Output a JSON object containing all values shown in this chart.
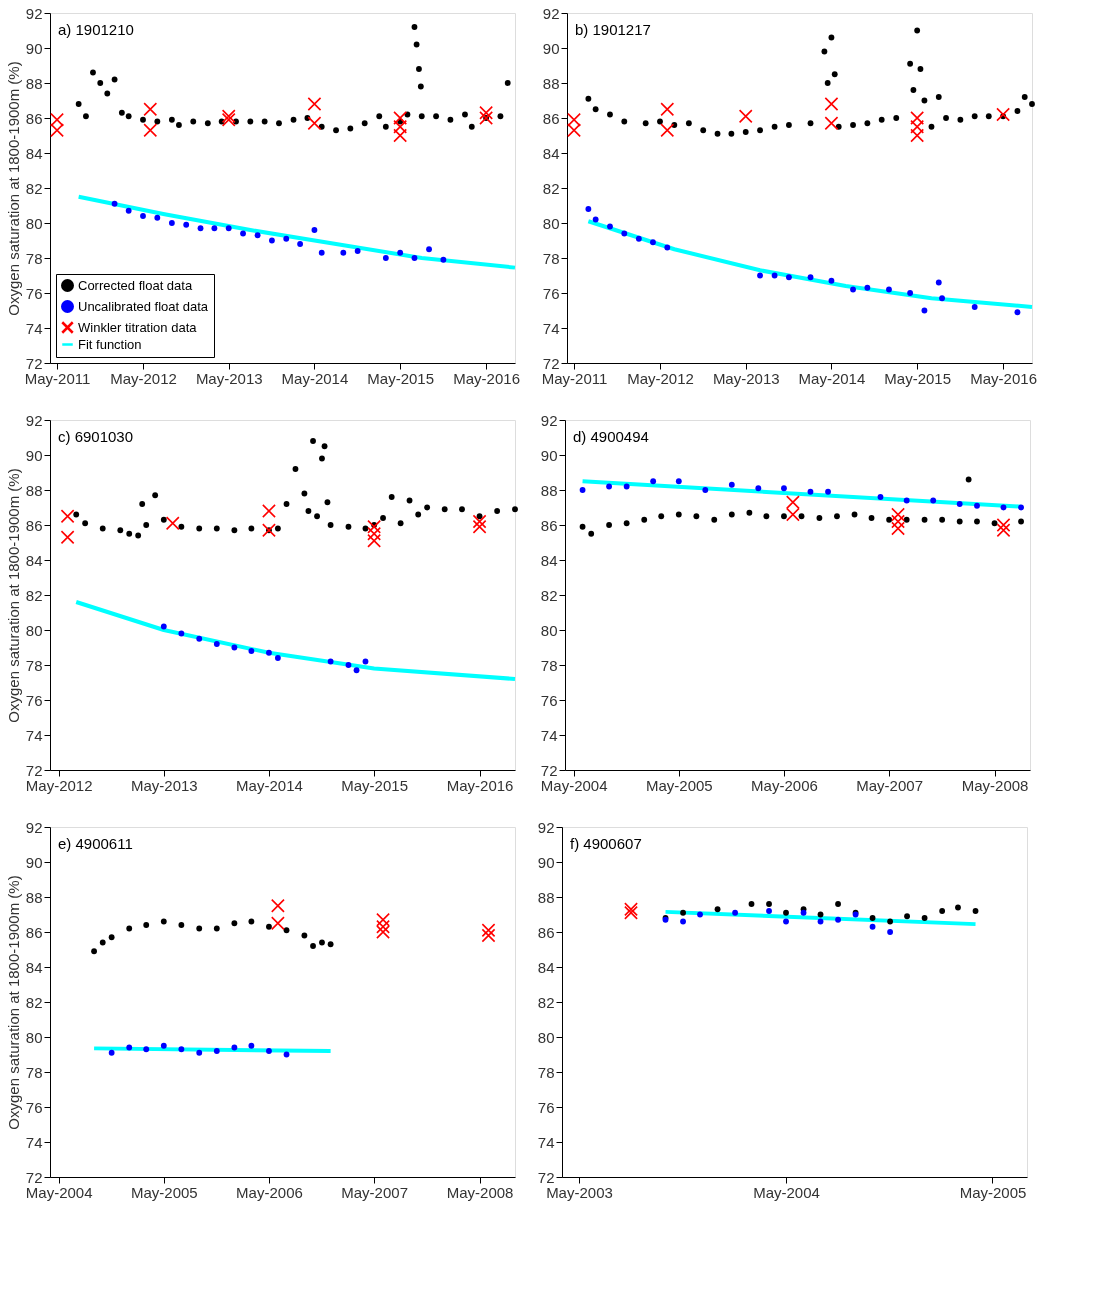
{
  "chart_data": [
    {
      "type": "scatter",
      "title": "a) 1901210",
      "ylabel": "Oxygen saturation at 1800-1900m (%)",
      "xlim": [
        "2011-04",
        "2016-09"
      ],
      "xticks": [
        {
          "value": "2011-05",
          "label": "May-2011"
        },
        {
          "value": "2012-05",
          "label": "May-2012"
        },
        {
          "value": "2013-05",
          "label": "May-2013"
        },
        {
          "value": "2014-05",
          "label": "May-2014"
        },
        {
          "value": "2015-05",
          "label": "May-2015"
        },
        {
          "value": "2016-05",
          "label": "May-2016"
        }
      ],
      "ylim": [
        72,
        92
      ],
      "yticks": [
        72,
        74,
        76,
        78,
        80,
        82,
        84,
        86,
        88,
        90,
        92
      ],
      "legend": "bottom left",
      "series": [
        {
          "name": "Corrected float data",
          "type": "scatter",
          "marker": "circle",
          "color": "#000000",
          "x": [
            "2011-08",
            "2011-09",
            "2011-10",
            "2011-11",
            "2011-12",
            "2012-01",
            "2012-02",
            "2012-03",
            "2012-05",
            "2012-07",
            "2012-09",
            "2012-10",
            "2012-12",
            "2013-02",
            "2013-04",
            "2013-06",
            "2013-08",
            "2013-10",
            "2013-12",
            "2014-02",
            "2014-04",
            "2014-06",
            "2014-08",
            "2014-10",
            "2014-12",
            "2015-02",
            "2015-03",
            "2015-05",
            "2015-06",
            "2015-07-01",
            "2015-07-10",
            "2015-07-20",
            "2015-07-28",
            "2015-08",
            "2015-10",
            "2015-12",
            "2016-02",
            "2016-03",
            "2016-05",
            "2016-07",
            "2016-08"
          ],
          "values": [
            86.8,
            86.1,
            88.6,
            88.0,
            87.4,
            88.2,
            86.3,
            86.1,
            85.9,
            85.8,
            85.9,
            85.6,
            85.8,
            85.7,
            85.8,
            85.8,
            85.8,
            85.8,
            85.7,
            85.9,
            86.0,
            85.5,
            85.3,
            85.4,
            85.7,
            86.1,
            85.5,
            85.8,
            86.2,
            91.2,
            90.2,
            88.8,
            87.8,
            86.1,
            86.1,
            85.9,
            86.2,
            85.5,
            86.0,
            86.1,
            88.0
          ]
        },
        {
          "name": "Uncalibrated float data",
          "type": "scatter",
          "marker": "circle",
          "color": "#0000ff",
          "x": [
            "2012-01",
            "2012-03",
            "2012-05",
            "2012-07",
            "2012-09",
            "2012-11",
            "2013-01",
            "2013-03",
            "2013-05",
            "2013-07",
            "2013-09",
            "2013-11",
            "2014-01",
            "2014-03",
            "2014-05",
            "2014-06",
            "2014-09",
            "2014-11",
            "2015-03",
            "2015-05",
            "2015-07",
            "2015-09",
            "2015-11"
          ],
          "values": [
            81.1,
            80.7,
            80.4,
            80.3,
            80.0,
            79.9,
            79.7,
            79.7,
            79.7,
            79.4,
            79.3,
            79.0,
            79.1,
            78.8,
            79.6,
            78.3,
            78.3,
            78.4,
            78.0,
            78.3,
            78.0,
            78.5,
            77.9
          ]
        },
        {
          "name": "Winkler titration data",
          "type": "scatter",
          "marker": "cross",
          "color": "#ff0000",
          "x": [
            "2011-05",
            "2011-05",
            "2012-06",
            "2012-06",
            "2013-05",
            "2013-05",
            "2014-05",
            "2014-05",
            "2015-05",
            "2015-05",
            "2015-05",
            "2016-05",
            "2016-05"
          ],
          "values": [
            85.9,
            85.3,
            86.5,
            85.3,
            86.1,
            85.9,
            86.8,
            85.7,
            86.0,
            85.5,
            85.0,
            86.3,
            86.0
          ]
        },
        {
          "name": "Fit function",
          "type": "line",
          "color": "#00ffff",
          "x": [
            "2011-08",
            "2012-08",
            "2013-08",
            "2014-08",
            "2015-08",
            "2016-09"
          ],
          "values": [
            81.5,
            80.5,
            79.6,
            78.8,
            78.0,
            77.45
          ]
        }
      ]
    },
    {
      "type": "scatter",
      "title": "b) 1901217",
      "xlim": [
        "2011-04",
        "2016-09"
      ],
      "xticks": [
        {
          "value": "2011-05",
          "label": "May-2011"
        },
        {
          "value": "2012-05",
          "label": "May-2012"
        },
        {
          "value": "2013-05",
          "label": "May-2013"
        },
        {
          "value": "2014-05",
          "label": "May-2014"
        },
        {
          "value": "2015-05",
          "label": "May-2015"
        },
        {
          "value": "2016-05",
          "label": "May-2016"
        }
      ],
      "ylim": [
        72,
        92
      ],
      "yticks": [
        72,
        74,
        76,
        78,
        80,
        82,
        84,
        86,
        88,
        90,
        92
      ],
      "series": [
        {
          "type": "scatter",
          "marker": "circle",
          "color": "#000000",
          "x": [
            "2011-07",
            "2011-08",
            "2011-10",
            "2011-12",
            "2012-03",
            "2012-05",
            "2012-07",
            "2012-09",
            "2012-11",
            "2013-01",
            "2013-03",
            "2013-05",
            "2013-07",
            "2013-09",
            "2013-11",
            "2014-02",
            "2014-04-01",
            "2014-04-15",
            "2014-05-01",
            "2014-05-15",
            "2014-06",
            "2014-08",
            "2014-10",
            "2014-12",
            "2015-02",
            "2015-04-01",
            "2015-04-15",
            "2015-05-01",
            "2015-05-15",
            "2015-06",
            "2015-07",
            "2015-08",
            "2015-09",
            "2015-11",
            "2016-01",
            "2016-03",
            "2016-05",
            "2016-07",
            "2016-08",
            "2016-09"
          ],
          "values": [
            87.1,
            86.5,
            86.2,
            85.8,
            85.7,
            85.8,
            85.6,
            85.7,
            85.3,
            85.1,
            85.1,
            85.2,
            85.3,
            85.5,
            85.6,
            85.7,
            89.8,
            88.0,
            90.6,
            88.5,
            85.5,
            85.6,
            85.7,
            85.9,
            86.0,
            89.1,
            87.6,
            91.0,
            88.8,
            87.0,
            85.5,
            87.2,
            86.0,
            85.9,
            86.1,
            86.1,
            86.1,
            86.4,
            87.2,
            86.8
          ]
        },
        {
          "type": "scatter",
          "marker": "circle",
          "color": "#0000ff",
          "x": [
            "2011-07",
            "2011-08",
            "2011-10",
            "2011-12",
            "2012-02",
            "2012-04",
            "2012-06",
            "2013-07",
            "2013-09",
            "2013-11",
            "2014-02",
            "2014-05",
            "2014-08",
            "2014-10",
            "2015-01",
            "2015-04",
            "2015-06",
            "2015-08-01",
            "2015-08-15",
            "2016-01",
            "2016-07"
          ],
          "values": [
            80.8,
            80.2,
            79.8,
            79.4,
            79.1,
            78.9,
            78.6,
            77.0,
            77.0,
            76.9,
            76.9,
            76.7,
            76.2,
            76.3,
            76.2,
            76.0,
            75.0,
            76.6,
            75.7,
            75.2,
            74.9
          ]
        },
        {
          "type": "scatter",
          "marker": "cross",
          "color": "#ff0000",
          "x": [
            "2011-05",
            "2011-05",
            "2012-06",
            "2012-06",
            "2013-05",
            "2014-05",
            "2014-05",
            "2015-05",
            "2015-05",
            "2015-05",
            "2016-05"
          ],
          "values": [
            85.9,
            85.3,
            86.5,
            85.3,
            86.1,
            86.8,
            85.7,
            86.0,
            85.5,
            85.0,
            86.2
          ]
        },
        {
          "type": "line",
          "color": "#00ffff",
          "x": [
            "2011-07",
            "2012-07",
            "2013-07",
            "2014-07",
            "2015-07",
            "2016-09"
          ],
          "values": [
            80.1,
            78.5,
            77.3,
            76.4,
            75.7,
            75.2
          ]
        }
      ]
    },
    {
      "type": "scatter",
      "title": "c) 6901030",
      "ylabel": "Oxygen saturation at 1800-1900m (%)",
      "xlim": [
        "2012-04",
        "2016-09"
      ],
      "xticks": [
        {
          "value": "2012-05",
          "label": "May-2012"
        },
        {
          "value": "2013-05",
          "label": "May-2013"
        },
        {
          "value": "2014-05",
          "label": "May-2014"
        },
        {
          "value": "2015-05",
          "label": "May-2015"
        },
        {
          "value": "2016-05",
          "label": "May-2016"
        }
      ],
      "ylim": [
        72,
        92
      ],
      "yticks": [
        72,
        74,
        76,
        78,
        80,
        82,
        84,
        86,
        88,
        90,
        92
      ],
      "series": [
        {
          "type": "scatter",
          "marker": "circle",
          "color": "#000000",
          "x": [
            "2012-07",
            "2012-08",
            "2012-10",
            "2012-12",
            "2013-01",
            "2013-02-01",
            "2013-02-15",
            "2013-03",
            "2013-04",
            "2013-05",
            "2013-07",
            "2013-09",
            "2013-11",
            "2014-01",
            "2014-03",
            "2014-05",
            "2014-06",
            "2014-07",
            "2014-08",
            "2014-09-01",
            "2014-09-15",
            "2014-10-01",
            "2014-10-15",
            "2014-11-01",
            "2014-11-10",
            "2014-11-20",
            "2014-12",
            "2015-02",
            "2015-04",
            "2015-05",
            "2015-06",
            "2015-07",
            "2015-08",
            "2015-09",
            "2015-10",
            "2015-11",
            "2016-01",
            "2016-03",
            "2016-05",
            "2016-07",
            "2016-09"
          ],
          "values": [
            86.6,
            86.1,
            85.8,
            85.7,
            85.5,
            85.4,
            87.2,
            86.0,
            87.7,
            86.3,
            85.9,
            85.8,
            85.8,
            85.7,
            85.8,
            85.7,
            85.8,
            87.2,
            89.2,
            87.8,
            86.8,
            90.8,
            86.5,
            89.8,
            90.5,
            87.3,
            86.0,
            85.9,
            85.8,
            86.0,
            86.4,
            87.6,
            86.1,
            87.4,
            86.6,
            87.0,
            86.9,
            86.9,
            86.5,
            86.8,
            86.9
          ]
        },
        {
          "type": "scatter",
          "marker": "circle",
          "color": "#0000ff",
          "x": [
            "2013-05",
            "2013-07",
            "2013-09",
            "2013-11",
            "2014-01",
            "2014-03",
            "2014-05",
            "2014-06",
            "2014-12",
            "2015-02",
            "2015-03",
            "2015-04"
          ],
          "values": [
            80.2,
            79.8,
            79.5,
            79.2,
            79.0,
            78.8,
            78.7,
            78.4,
            78.2,
            78.0,
            77.7,
            78.2
          ]
        },
        {
          "type": "scatter",
          "marker": "cross",
          "color": "#ff0000",
          "x": [
            "2012-06",
            "2012-06",
            "2013-06",
            "2014-05",
            "2014-05",
            "2015-05",
            "2015-05",
            "2015-05",
            "2016-05",
            "2016-05"
          ],
          "values": [
            86.5,
            85.3,
            86.1,
            86.8,
            85.7,
            85.9,
            85.5,
            85.1,
            86.2,
            85.9
          ]
        },
        {
          "type": "line",
          "color": "#00ffff",
          "x": [
            "2012-07",
            "2013-05",
            "2014-05",
            "2015-05",
            "2016-09"
          ],
          "values": [
            81.6,
            80.0,
            78.7,
            77.8,
            77.2
          ]
        }
      ]
    },
    {
      "type": "scatter",
      "title": "d) 4900494",
      "xlim": [
        "2004-04",
        "2008-09"
      ],
      "xticks": [
        {
          "value": "2004-05",
          "label": "May-2004"
        },
        {
          "value": "2005-05",
          "label": "May-2005"
        },
        {
          "value": "2006-05",
          "label": "May-2006"
        },
        {
          "value": "2007-05",
          "label": "May-2007"
        },
        {
          "value": "2008-05",
          "label": "May-2008"
        }
      ],
      "ylim": [
        72,
        92
      ],
      "yticks": [
        72,
        74,
        76,
        78,
        80,
        82,
        84,
        86,
        88,
        90,
        92
      ],
      "series": [
        {
          "type": "scatter",
          "marker": "circle",
          "color": "#000000",
          "x": [
            "2004-06",
            "2004-07",
            "2004-09",
            "2004-11",
            "2005-01",
            "2005-03",
            "2005-05",
            "2005-07",
            "2005-09",
            "2005-11",
            "2006-01",
            "2006-03",
            "2006-05",
            "2006-07",
            "2006-09",
            "2006-11",
            "2007-01",
            "2007-03",
            "2007-05",
            "2007-07",
            "2007-09",
            "2007-11",
            "2008-01",
            "2008-02",
            "2008-03",
            "2008-05",
            "2008-08"
          ],
          "values": [
            85.9,
            85.5,
            86.0,
            86.1,
            86.3,
            86.5,
            86.6,
            86.5,
            86.3,
            86.6,
            86.7,
            86.5,
            86.5,
            86.5,
            86.4,
            86.5,
            86.6,
            86.4,
            86.3,
            86.3,
            86.3,
            86.3,
            86.2,
            88.6,
            86.2,
            86.1,
            86.2
          ]
        },
        {
          "type": "scatter",
          "marker": "circle",
          "color": "#0000ff",
          "x": [
            "2004-06",
            "2004-09",
            "2004-11",
            "2005-02",
            "2005-05",
            "2005-08",
            "2005-11",
            "2006-02",
            "2006-05",
            "2006-08",
            "2006-10",
            "2007-04",
            "2007-07",
            "2007-10",
            "2008-01",
            "2008-03",
            "2008-06",
            "2008-08"
          ],
          "values": [
            88.0,
            88.2,
            88.2,
            88.5,
            88.5,
            88.0,
            88.3,
            88.1,
            88.1,
            87.9,
            87.9,
            87.6,
            87.4,
            87.4,
            87.2,
            87.1,
            87.0,
            87.0
          ]
        },
        {
          "type": "scatter",
          "marker": "cross",
          "color": "#ff0000",
          "x": [
            "2006-06",
            "2006-06",
            "2007-06",
            "2007-06",
            "2007-06",
            "2008-06",
            "2008-06"
          ],
          "values": [
            87.3,
            86.6,
            86.6,
            86.2,
            85.8,
            86.0,
            85.7
          ]
        },
        {
          "type": "line",
          "color": "#00ffff",
          "x": [
            "2004-06",
            "2008-08"
          ],
          "values": [
            88.5,
            87.05
          ]
        }
      ]
    },
    {
      "type": "scatter",
      "title": "e) 4900611",
      "ylabel": "Oxygen saturation at 1800-1900m (%)",
      "xlim": [
        "2004-04",
        "2008-09"
      ],
      "xticks": [
        {
          "value": "2004-05",
          "label": "May-2004"
        },
        {
          "value": "2005-05",
          "label": "May-2005"
        },
        {
          "value": "2006-05",
          "label": "May-2006"
        },
        {
          "value": "2007-05",
          "label": "May-2007"
        },
        {
          "value": "2008-05",
          "label": "May-2008"
        }
      ],
      "ylim": [
        72,
        92
      ],
      "yticks": [
        72,
        74,
        76,
        78,
        80,
        82,
        84,
        86,
        88,
        90,
        92
      ],
      "series": [
        {
          "type": "scatter",
          "marker": "circle",
          "color": "#000000",
          "x": [
            "2004-09",
            "2004-10",
            "2004-11",
            "2005-01",
            "2005-03",
            "2005-05",
            "2005-07",
            "2005-09",
            "2005-11",
            "2006-01",
            "2006-03",
            "2006-05",
            "2006-07",
            "2006-09",
            "2006-10",
            "2006-11",
            "2006-12"
          ],
          "values": [
            84.9,
            85.4,
            85.7,
            86.2,
            86.4,
            86.6,
            86.4,
            86.2,
            86.2,
            86.5,
            86.6,
            86.3,
            86.1,
            85.8,
            85.2,
            85.4,
            85.3
          ]
        },
        {
          "type": "scatter",
          "marker": "circle",
          "color": "#0000ff",
          "x": [
            "2004-11",
            "2005-01",
            "2005-03",
            "2005-05",
            "2005-07",
            "2005-09",
            "2005-11",
            "2006-01",
            "2006-03",
            "2006-05",
            "2006-07"
          ],
          "values": [
            79.1,
            79.4,
            79.3,
            79.5,
            79.3,
            79.1,
            79.2,
            79.4,
            79.5,
            79.2,
            79.0
          ]
        },
        {
          "type": "scatter",
          "marker": "cross",
          "color": "#ff0000",
          "x": [
            "2006-06",
            "2006-06",
            "2007-06",
            "2007-06",
            "2007-06",
            "2008-06",
            "2008-06"
          ],
          "values": [
            87.5,
            86.5,
            86.7,
            86.3,
            86.0,
            86.1,
            85.8
          ]
        },
        {
          "type": "line",
          "color": "#00ffff",
          "x": [
            "2004-09",
            "2006-12"
          ],
          "values": [
            79.35,
            79.2
          ]
        }
      ]
    },
    {
      "type": "scatter",
      "title": "f) 4900607",
      "xlim": [
        "2003-04",
        "2005-07"
      ],
      "xticks": [
        {
          "value": "2003-05",
          "label": "May-2003"
        },
        {
          "value": "2004-05",
          "label": "May-2004"
        },
        {
          "value": "2005-05",
          "label": "May-2005"
        }
      ],
      "ylim": [
        72,
        92
      ],
      "yticks": [
        72,
        74,
        76,
        78,
        80,
        82,
        84,
        86,
        88,
        90,
        92
      ],
      "series": [
        {
          "type": "scatter",
          "marker": "circle",
          "color": "#000000",
          "x": [
            "2003-10",
            "2003-11",
            "2004-01",
            "2004-03",
            "2004-04",
            "2004-05",
            "2004-06",
            "2004-07",
            "2004-08",
            "2004-09",
            "2004-10",
            "2004-11",
            "2004-12",
            "2005-01",
            "2005-02",
            "2005-03",
            "2005-04"
          ],
          "values": [
            86.8,
            87.1,
            87.3,
            87.6,
            87.6,
            87.1,
            87.3,
            87.0,
            87.6,
            87.1,
            86.8,
            86.6,
            86.9,
            86.8,
            87.2,
            87.4,
            87.2
          ]
        },
        {
          "type": "scatter",
          "marker": "circle",
          "color": "#0000ff",
          "x": [
            "2003-10",
            "2003-11",
            "2003-12",
            "2004-02",
            "2004-04",
            "2004-05",
            "2004-06",
            "2004-07",
            "2004-08",
            "2004-09",
            "2004-10",
            "2004-11"
          ],
          "values": [
            86.7,
            86.6,
            87.0,
            87.1,
            87.2,
            86.6,
            87.1,
            86.6,
            86.7,
            87.0,
            86.3,
            86.0
          ]
        },
        {
          "type": "scatter",
          "marker": "cross",
          "color": "#ff0000",
          "x": [
            "2003-08",
            "2003-08"
          ],
          "values": [
            87.3,
            87.1
          ]
        },
        {
          "type": "line",
          "color": "#00ffff",
          "x": [
            "2003-10",
            "2005-04"
          ],
          "values": [
            87.15,
            86.45
          ]
        }
      ]
    }
  ]
}
